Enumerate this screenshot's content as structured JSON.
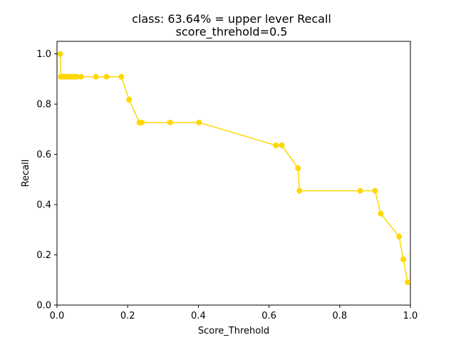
{
  "chart_data": {
    "type": "line",
    "title": "class: 63.64% = upper lever Recall",
    "subtitle": "score_threhold=0.5",
    "xlabel": "Score_Threhold",
    "ylabel": "Recall",
    "xlim": [
      0.0,
      1.0
    ],
    "ylim": [
      0.0,
      1.05
    ],
    "xticks": [
      "0.0",
      "0.2",
      "0.4",
      "0.6",
      "0.8",
      "1.0"
    ],
    "yticks": [
      "0.0",
      "0.2",
      "0.4",
      "0.6",
      "0.8",
      "1.0"
    ],
    "grid": false,
    "legend": false,
    "marker": "circle",
    "series": [
      {
        "color": "#ffd700",
        "x": [
          0.009,
          0.011,
          0.015,
          0.02,
          0.025,
          0.03,
          0.035,
          0.04,
          0.045,
          0.05,
          0.055,
          0.068,
          0.11,
          0.14,
          0.182,
          0.204,
          0.233,
          0.24,
          0.32,
          0.402,
          0.619,
          0.636,
          0.682,
          0.686,
          0.858,
          0.9,
          0.916,
          0.968,
          0.98,
          0.992
        ],
        "y": [
          1.0,
          0.909,
          0.909,
          0.909,
          0.909,
          0.909,
          0.909,
          0.909,
          0.909,
          0.909,
          0.909,
          0.909,
          0.909,
          0.909,
          0.909,
          0.818,
          0.727,
          0.727,
          0.727,
          0.727,
          0.636,
          0.636,
          0.545,
          0.455,
          0.455,
          0.455,
          0.364,
          0.273,
          0.182,
          0.091
        ]
      }
    ]
  }
}
